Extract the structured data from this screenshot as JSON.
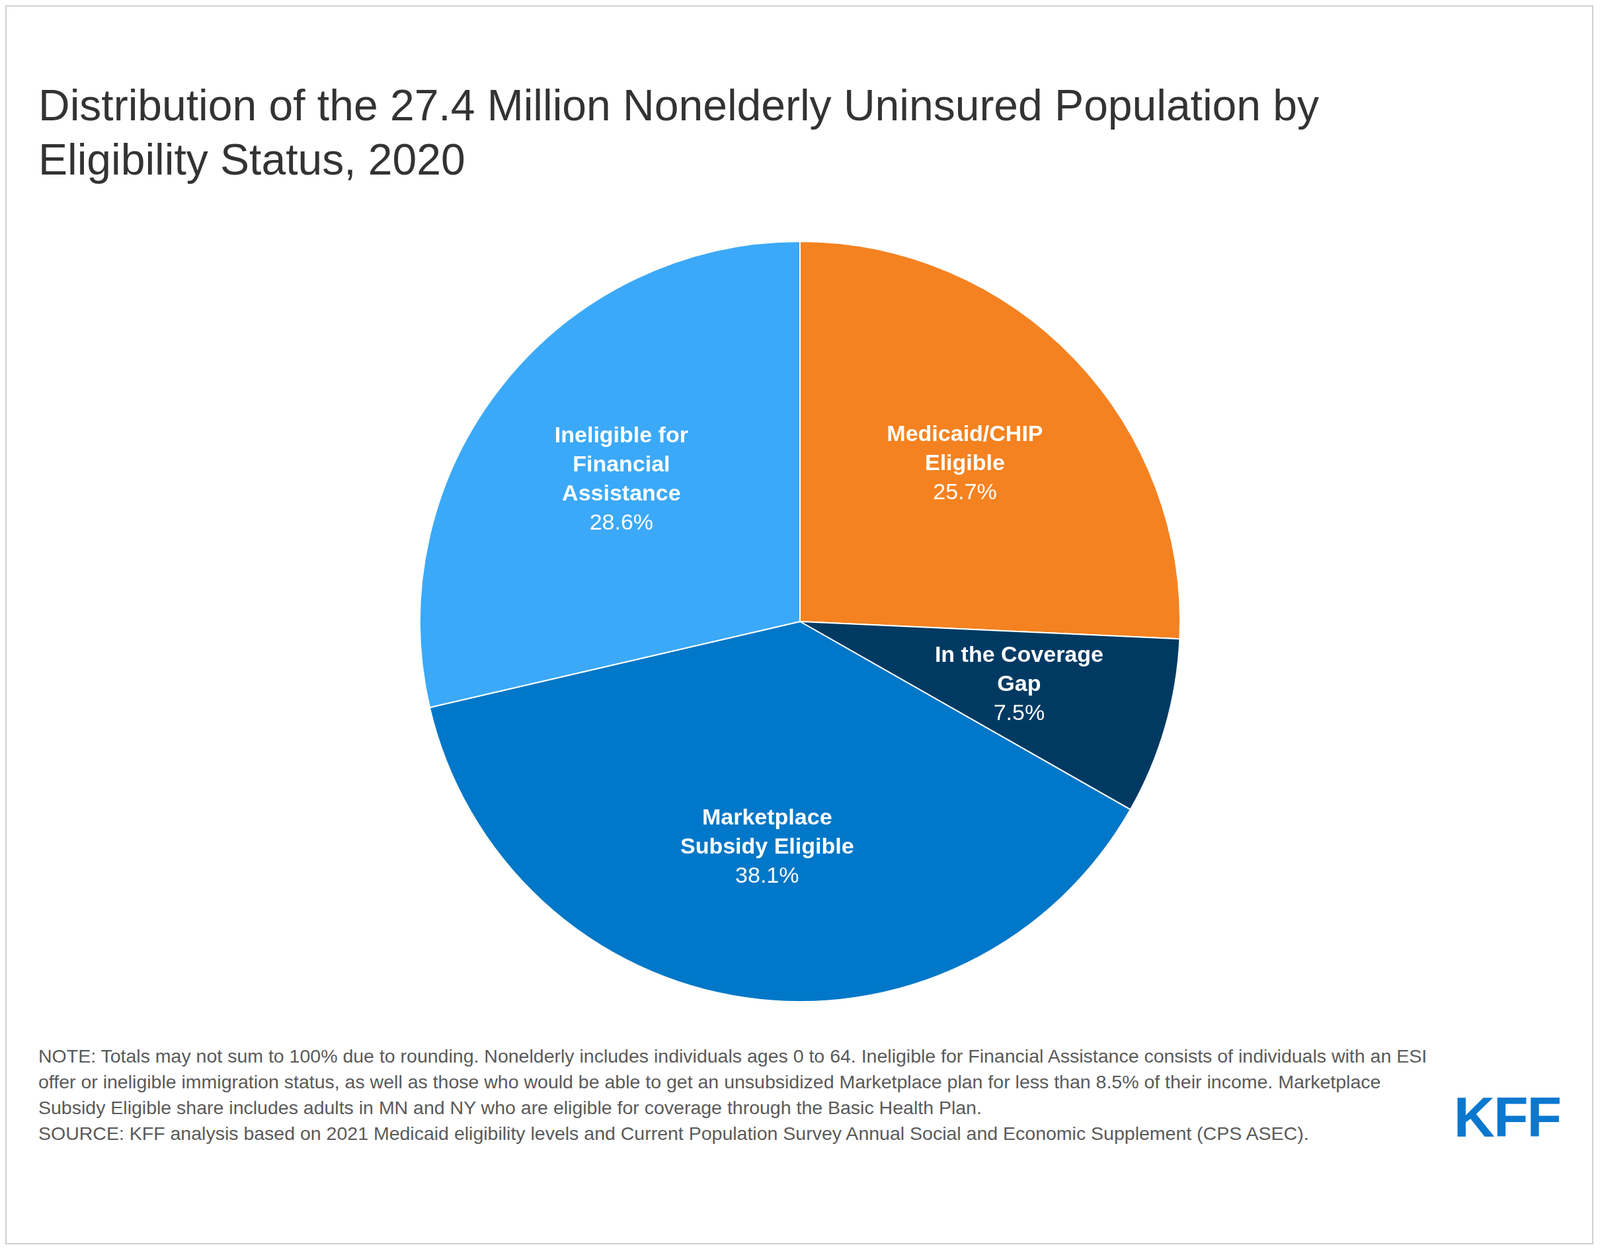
{
  "chart_data": {
    "type": "pie",
    "title": "Distribution of the 27.4 Million Nonelderly Uninsured Population by Eligibility Status, 2020",
    "categories": [
      "Medicaid/CHIP Eligible",
      "In the Coverage Gap",
      "Marketplace Subsidy Eligible",
      "Ineligible for Financial Assistance"
    ],
    "values": [
      25.7,
      7.5,
      38.1,
      28.6
    ],
    "value_labels": [
      "25.7%",
      "7.5%",
      "38.1%",
      "28.6%"
    ],
    "colors": [
      "#f58220",
      "#003a63",
      "#0077c8",
      "#3ba9f8"
    ],
    "data_labels": true,
    "legend": false
  },
  "footer": {
    "note": "NOTE: Totals may not sum to 100% due to rounding. Nonelderly includes individuals ages 0 to 64. Ineligible for Financial Assistance consists of individuals with an ESI offer or ineligible immigration status, as well as those who would be able to get an unsubsidized Marketplace plan for less than 8.5% of their income. Marketplace Subsidy Eligible share includes adults in MN and NY who are eligible for coverage through the Basic Health Plan.",
    "source": "SOURCE: KFF analysis based on 2021 Medicaid eligibility levels and Current Population Survey Annual Social and Economic Supplement (CPS ASEC).",
    "logo": "KFF"
  }
}
